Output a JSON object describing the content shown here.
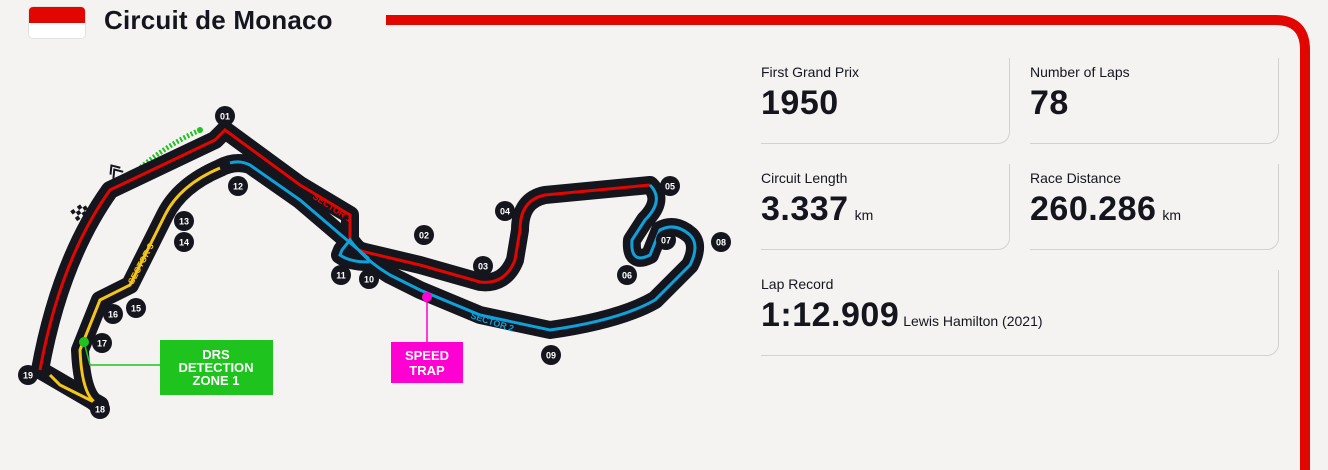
{
  "circuit": {
    "name": "Circuit de Monaco",
    "flag_colors": [
      "#e10600",
      "#ffffff"
    ]
  },
  "colors": {
    "accent": "#e10600",
    "sector1": "#e10600",
    "sector2": "#0fa1d9",
    "sector3": "#f5c518",
    "drs": "#1ec31e",
    "speed_trap": "#ff00d2",
    "track": "#15151e"
  },
  "stats": {
    "first_grand_prix": {
      "label": "First Grand Prix",
      "value": "1950"
    },
    "laps": {
      "label": "Number of Laps",
      "value": "78"
    },
    "length": {
      "label": "Circuit Length",
      "value": "3.337",
      "unit": "km"
    },
    "distance": {
      "label": "Race Distance",
      "value": "260.286",
      "unit": "km"
    },
    "lap_record": {
      "label": "Lap Record",
      "value": "1:12.909",
      "holder": "Lewis Hamilton (2021)"
    }
  },
  "map": {
    "sectors": [
      "SECTOR 1",
      "SECTOR 2",
      "SECTOR 3"
    ],
    "turns": [
      "01",
      "02",
      "03",
      "04",
      "05",
      "06",
      "07",
      "08",
      "09",
      "10",
      "11",
      "12",
      "13",
      "14",
      "15",
      "16",
      "17",
      "18",
      "19"
    ],
    "drs": {
      "line1": "DRS",
      "line2": "DETECTION",
      "line3": "ZONE 1"
    },
    "speed_trap": {
      "line1": "SPEED",
      "line2": "TRAP"
    },
    "icons": [
      "chequered-flag-icon",
      "direction-arrows-icon"
    ]
  }
}
